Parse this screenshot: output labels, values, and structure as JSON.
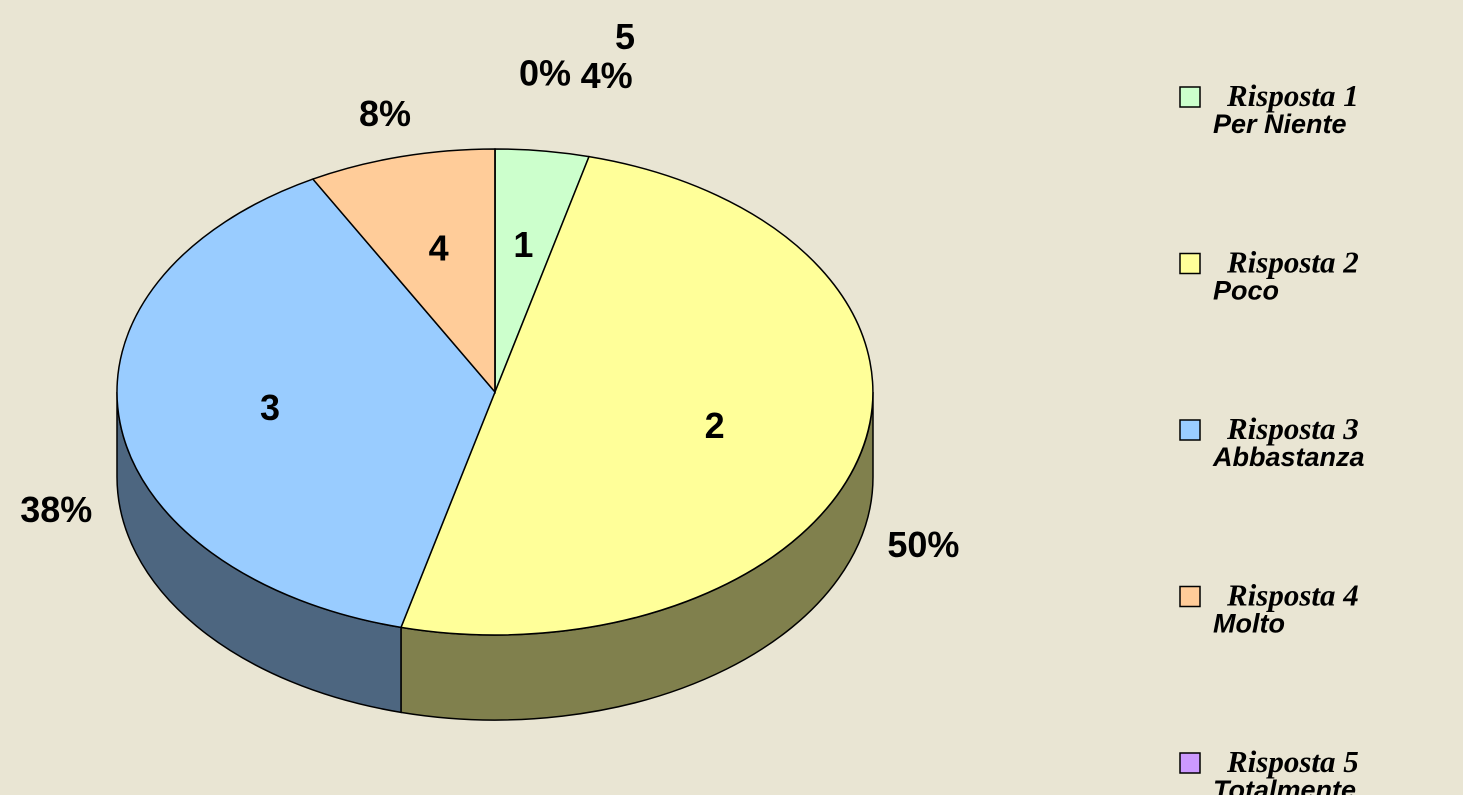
{
  "chart_data": {
    "type": "pie",
    "categories": [
      "1",
      "2",
      "3",
      "4",
      "5"
    ],
    "values": [
      4,
      50,
      38,
      8,
      0
    ],
    "value_labels": [
      "4%",
      "50%",
      "38%",
      "8%",
      "0%"
    ],
    "colors": [
      "#ccffcc",
      "#ffff99",
      "#99ccff",
      "#ffcc99",
      "#cc99ff"
    ],
    "legend": [
      {
        "title": "Risposta 1",
        "subtitle": "Per Niente"
      },
      {
        "title": "Risposta 2",
        "subtitle": "Poco"
      },
      {
        "title": "Risposta 3",
        "subtitle": "Abbastanza"
      },
      {
        "title": "Risposta 4",
        "subtitle": "Molto"
      },
      {
        "title": "Risposta 5",
        "subtitle": "Totalmente"
      }
    ],
    "legend_position": "right"
  }
}
